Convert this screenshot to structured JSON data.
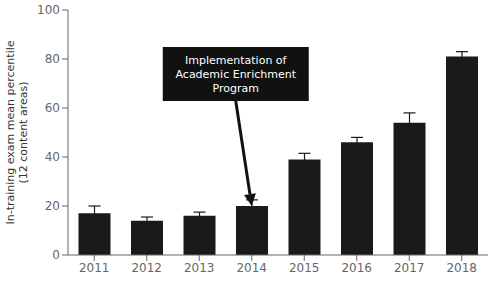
{
  "chart_data": {
    "type": "bar",
    "categories": [
      "2011",
      "2012",
      "2013",
      "2014",
      "2015",
      "2016",
      "2017",
      "2018"
    ],
    "values": [
      17,
      14,
      16,
      20,
      39,
      46,
      54,
      81
    ],
    "errors": [
      3.0,
      1.5,
      1.5,
      2.5,
      2.5,
      2.0,
      4.0,
      2.0
    ],
    "color": "#1a1a1a",
    "ylabel": "In-training exam mean percentile\n(12 content areas)",
    "ylim": [
      0,
      100
    ],
    "yticks": [
      0,
      20,
      40,
      60,
      80,
      100
    ],
    "grid": false,
    "annotations": [
      {
        "text": "Implementation of\nAcademic Enrichment\nProgram",
        "x": "2014",
        "y": 20
      }
    ]
  }
}
